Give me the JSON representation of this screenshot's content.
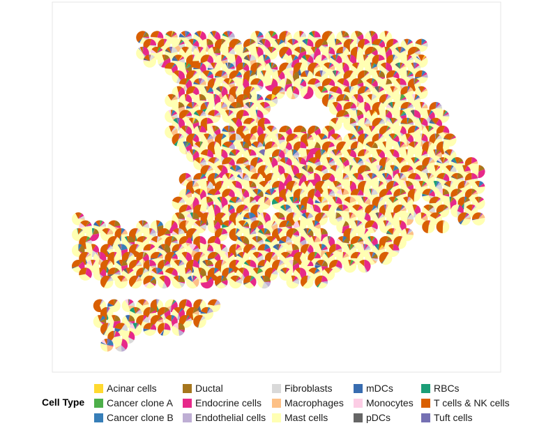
{
  "chart_data": {
    "type": "spatial-pie-scatter",
    "title": "",
    "xlabel": "",
    "ylabel": "",
    "grid": false,
    "legend_placement": "bottom",
    "legend": {
      "title": "Cell Type",
      "entries": [
        {
          "label": "Acinar cells",
          "color": "#FFD92F"
        },
        {
          "label": "Cancer clone A",
          "color": "#4DAF4A"
        },
        {
          "label": "Cancer clone B",
          "color": "#377EB8"
        },
        {
          "label": "Ductal",
          "color": "#A6761D"
        },
        {
          "label": "Endocrine cells",
          "color": "#E7298A"
        },
        {
          "label": "Endothelial cells",
          "color": "#BEAED4"
        },
        {
          "label": "Fibroblasts",
          "color": "#D9D9D9"
        },
        {
          "label": "Macrophages",
          "color": "#FDC086"
        },
        {
          "label": "Mast cells",
          "color": "#FFFFB3"
        },
        {
          "label": "mDCs",
          "color": "#386CB0"
        },
        {
          "label": "Monocytes",
          "color": "#FCCDE5"
        },
        {
          "label": "pDCs",
          "color": "#666666"
        },
        {
          "label": "RBCs",
          "color": "#1B9E77"
        },
        {
          "label": "T cells & NK cells",
          "color": "#D95F02"
        },
        {
          "label": "Tuft cells",
          "color": "#7570B3"
        }
      ]
    }
  }
}
